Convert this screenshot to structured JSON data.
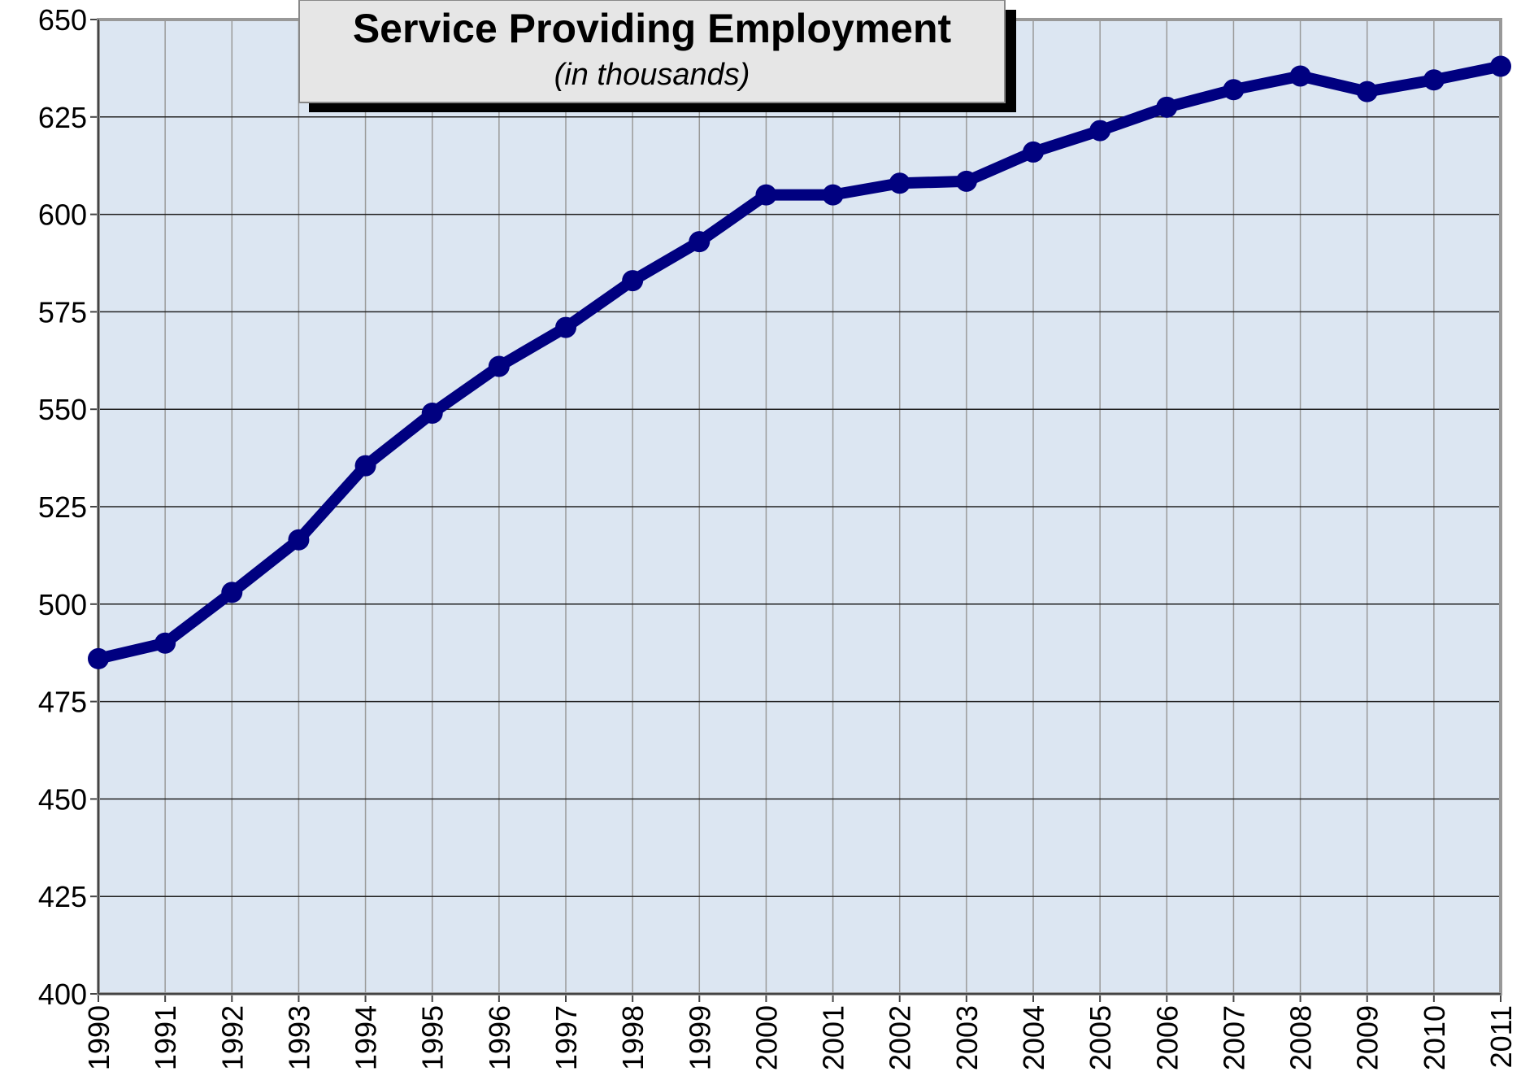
{
  "chart_data": {
    "type": "line",
    "title": "Service Providing Employment",
    "subtitle": "(in thousands)",
    "categories": [
      "1990",
      "1991",
      "1992",
      "1993",
      "1994",
      "1995",
      "1996",
      "1997",
      "1998",
      "1999",
      "2000",
      "2001",
      "2002",
      "2003",
      "2004",
      "2005",
      "2006",
      "2007",
      "2008",
      "2009",
      "2010",
      "2011"
    ],
    "series": [
      {
        "color": "#000080",
        "values": [
          486,
          490,
          503,
          516.5,
          535.5,
          549,
          561,
          571,
          583,
          593,
          605,
          605,
          608,
          608.5,
          616,
          621.5,
          627.5,
          632,
          635.5,
          631.5,
          634.5,
          638
        ]
      }
    ],
    "ylim": [
      400,
      650
    ],
    "yticks": [
      400,
      425,
      450,
      475,
      500,
      525,
      550,
      575,
      600,
      625,
      650
    ],
    "grid": true
  }
}
